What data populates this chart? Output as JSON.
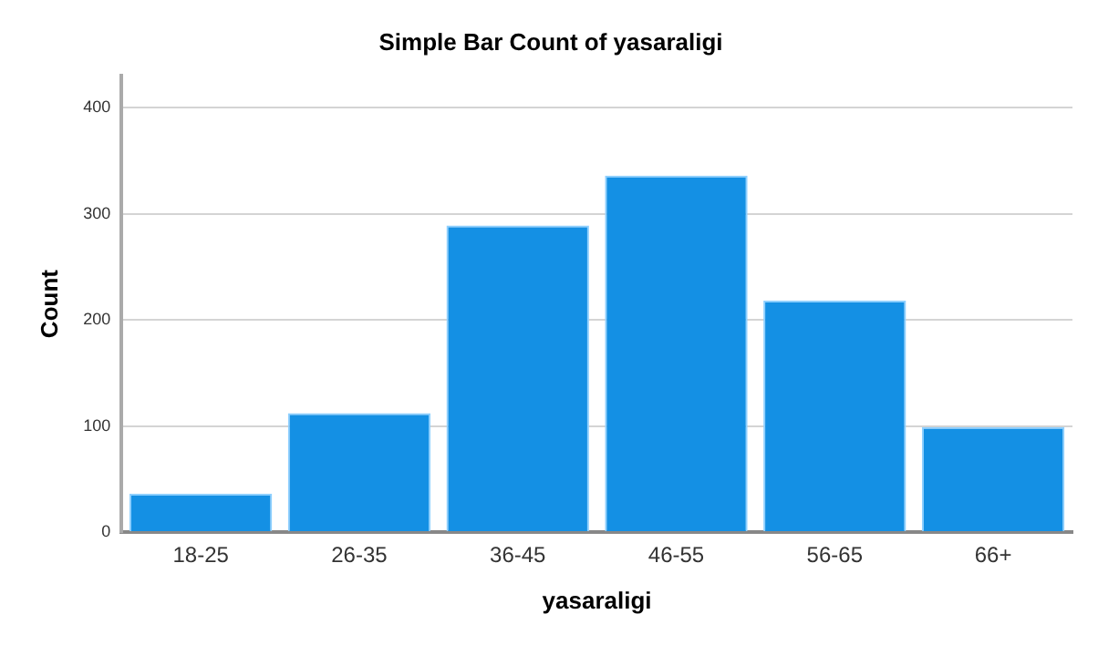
{
  "chart_data": {
    "type": "bar",
    "title": "Simple Bar Count of yasaraligi",
    "xlabel": "yasaraligi",
    "ylabel": "Count",
    "categories": [
      "18-25",
      "26-35",
      "36-45",
      "46-55",
      "56-65",
      "66+"
    ],
    "values": [
      36,
      112,
      289,
      336,
      218,
      99
    ],
    "color": "#1490e4",
    "ylim": [
      0,
      430
    ],
    "yticks": [
      0,
      100,
      200,
      300,
      400
    ],
    "grid": "y"
  }
}
